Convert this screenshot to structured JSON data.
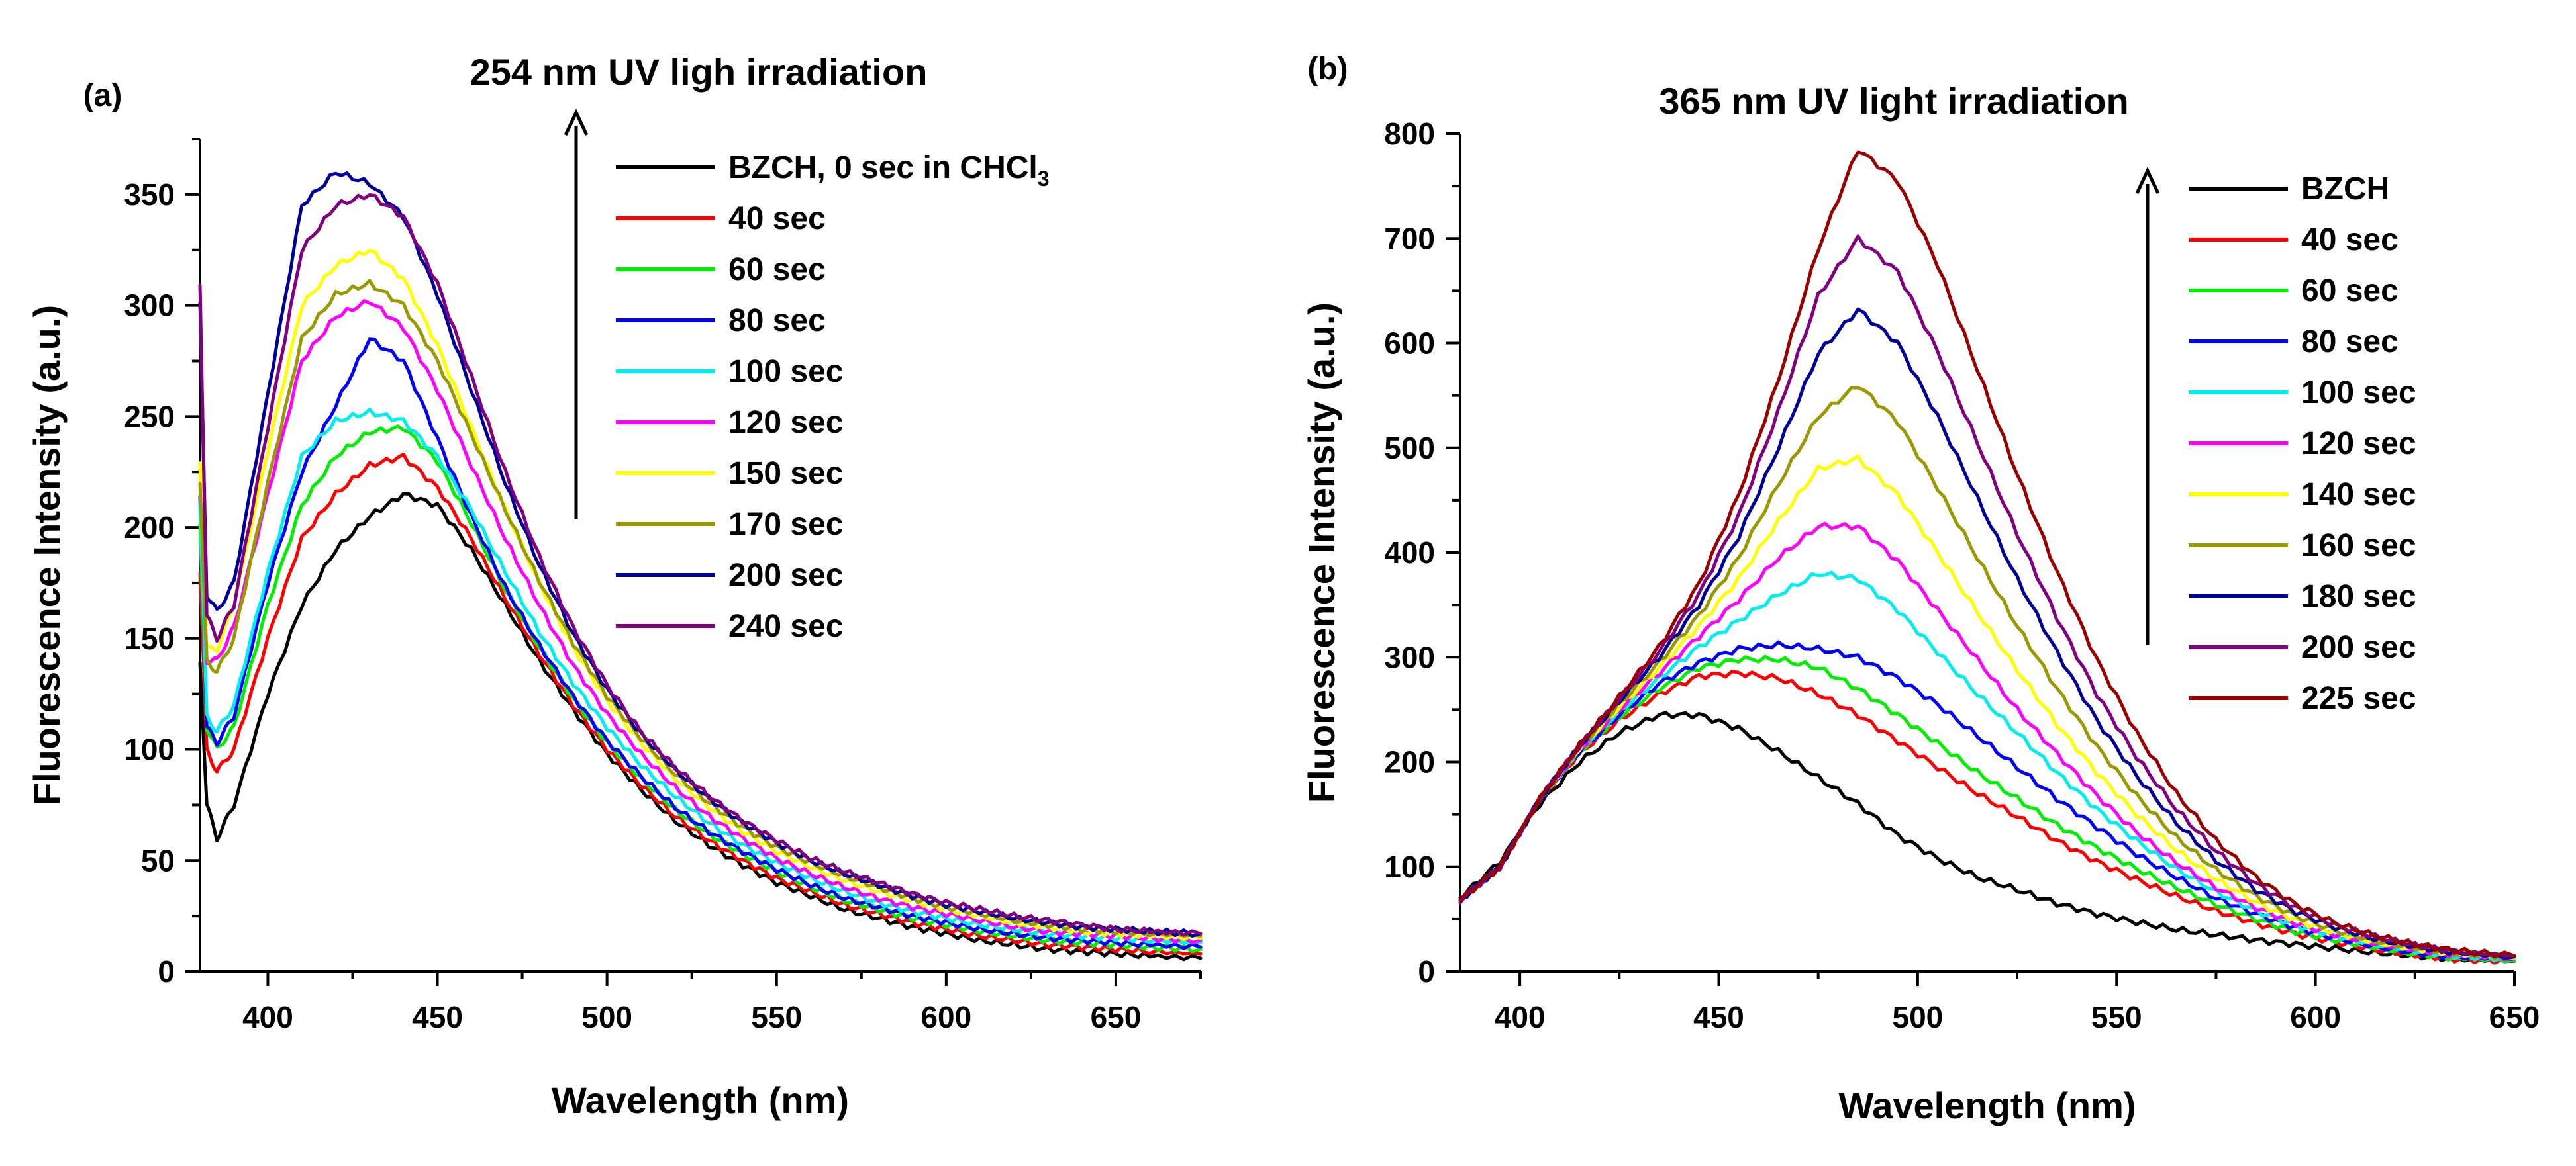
{
  "chart_data": [
    {
      "type": "line",
      "panel_label": "(a)",
      "title": "254 nm UV ligh irradiation",
      "xlabel": "Wavelength (nm)",
      "ylabel": "Fluorescence Intensity (a.u.)",
      "xlim": [
        380,
        675
      ],
      "ylim": [
        0,
        375
      ],
      "xticks": [
        400,
        450,
        500,
        550,
        600,
        650
      ],
      "yticks": [
        0,
        50,
        100,
        150,
        200,
        250,
        300,
        350
      ],
      "legend_position": "top-right",
      "arrow": {
        "direction": "up",
        "meaning": "increasing irradiation time"
      },
      "x": [
        380,
        382,
        385,
        390,
        400,
        410,
        420,
        430,
        440,
        450,
        460,
        470,
        480,
        490,
        500,
        510,
        520,
        530,
        540,
        550,
        560,
        570,
        580,
        590,
        600,
        610,
        620,
        630,
        640,
        650,
        660,
        675
      ],
      "series": [
        {
          "name": "BZCH, 0 sec in CHCl3",
          "label_main": "BZCH, 0 sec in CHCl",
          "label_sub": "3",
          "color": "#000000",
          "values": [
            140,
            75,
            60,
            75,
            125,
            165,
            190,
            205,
            215,
            210,
            190,
            165,
            140,
            118,
            98,
            82,
            68,
            57,
            48,
            40,
            34,
            28,
            24,
            20,
            17,
            14,
            12,
            10,
            9,
            8,
            7,
            6
          ]
        },
        {
          "name": "40 sec",
          "color": "#ff0000",
          "values": [
            180,
            100,
            90,
            100,
            150,
            195,
            215,
            228,
            232,
            218,
            195,
            168,
            143,
            120,
            100,
            84,
            70,
            59,
            50,
            42,
            36,
            30,
            26,
            22,
            19,
            16,
            14,
            12,
            11,
            10,
            9,
            8
          ]
        },
        {
          "name": "60 sec",
          "color": "#00ee00",
          "values": [
            200,
            110,
            100,
            110,
            165,
            210,
            232,
            243,
            245,
            230,
            202,
            172,
            146,
            123,
            103,
            87,
            73,
            62,
            53,
            45,
            38,
            32,
            28,
            24,
            21,
            18,
            16,
            14,
            13,
            12,
            11,
            10
          ]
        },
        {
          "name": "80 sec",
          "color": "#0000ff",
          "values": [
            215,
            110,
            103,
            115,
            175,
            225,
            255,
            285,
            275,
            240,
            205,
            173,
            147,
            124,
            104,
            88,
            74,
            63,
            54,
            46,
            39,
            33,
            29,
            25,
            22,
            19,
            17,
            15,
            14,
            13,
            12,
            11
          ]
        },
        {
          "name": "100 sec",
          "color": "#00eeee",
          "values": [
            210,
            115,
            108,
            120,
            180,
            232,
            248,
            252,
            248,
            232,
            208,
            180,
            153,
            130,
            110,
            93,
            79,
            67,
            57,
            49,
            42,
            36,
            31,
            27,
            24,
            21,
            19,
            17,
            16,
            15,
            14,
            13
          ]
        },
        {
          "name": "120 sec",
          "color": "#ff00ff",
          "values": [
            225,
            140,
            140,
            155,
            215,
            275,
            295,
            302,
            290,
            262,
            228,
            195,
            165,
            138,
            116,
            98,
            83,
            70,
            60,
            51,
            44,
            38,
            33,
            29,
            26,
            23,
            20,
            18,
            17,
            16,
            15,
            14
          ]
        },
        {
          "name": "150 sec",
          "color": "#ffff00",
          "values": [
            230,
            145,
            145,
            165,
            235,
            300,
            318,
            325,
            312,
            282,
            245,
            208,
            175,
            146,
            122,
            103,
            87,
            74,
            63,
            54,
            47,
            41,
            36,
            32,
            28,
            25,
            22,
            20,
            18,
            17,
            16,
            15
          ]
        },
        {
          "name": "170 sec",
          "color": "#999900",
          "values": [
            220,
            140,
            135,
            150,
            220,
            285,
            305,
            310,
            300,
            275,
            242,
            208,
            176,
            148,
            124,
            105,
            89,
            76,
            65,
            56,
            49,
            43,
            38,
            33,
            29,
            26,
            23,
            21,
            19,
            18,
            17,
            16
          ]
        },
        {
          "name": "200 sec",
          "color": "#000099",
          "values": [
            300,
            170,
            162,
            175,
            260,
            345,
            360,
            355,
            340,
            305,
            262,
            220,
            183,
            152,
            127,
            107,
            91,
            78,
            67,
            58,
            50,
            44,
            39,
            34,
            30,
            27,
            24,
            22,
            20,
            19,
            18,
            17
          ]
        },
        {
          "name": "240 sec",
          "color": "#800080",
          "values": [
            310,
            160,
            150,
            165,
            245,
            325,
            345,
            350,
            340,
            310,
            268,
            225,
            187,
            155,
            129,
            108,
            92,
            79,
            68,
            59,
            51,
            45,
            40,
            35,
            31,
            28,
            25,
            23,
            21,
            19,
            18,
            17
          ]
        }
      ]
    },
    {
      "type": "line",
      "panel_label": "(b)",
      "title": "365 nm UV light irradiation",
      "xlabel": "Wavelength (nm)",
      "ylabel": "Fluorescence Intensity (a.u.)",
      "xlim": [
        385,
        650
      ],
      "ylim": [
        0,
        800
      ],
      "xticks": [
        400,
        450,
        500,
        550,
        600,
        650
      ],
      "yticks": [
        0,
        100,
        200,
        300,
        400,
        500,
        600,
        700,
        800
      ],
      "legend_position": "top-right",
      "arrow": {
        "direction": "up",
        "meaning": "increasing irradiation time"
      },
      "x": [
        385,
        395,
        405,
        415,
        425,
        435,
        445,
        455,
        465,
        475,
        485,
        495,
        505,
        515,
        525,
        535,
        545,
        555,
        565,
        575,
        585,
        595,
        605,
        615,
        625,
        635,
        650
      ],
      "series": [
        {
          "name": "BZCH",
          "color": "#000000",
          "values": [
            70,
            105,
            160,
            200,
            228,
            245,
            245,
            232,
            210,
            185,
            160,
            130,
            108,
            90,
            78,
            65,
            55,
            47,
            40,
            35,
            30,
            26,
            22,
            18,
            15,
            12,
            10
          ]
        },
        {
          "name": "40 sec",
          "color": "#ff0000",
          "values": [
            68,
            100,
            165,
            208,
            240,
            265,
            282,
            285,
            280,
            265,
            245,
            220,
            195,
            170,
            148,
            125,
            105,
            88,
            72,
            58,
            46,
            36,
            28,
            21,
            16,
            12,
            10
          ]
        },
        {
          "name": "60 sec",
          "color": "#00ee00",
          "values": [
            68,
            100,
            165,
            210,
            243,
            270,
            290,
            298,
            298,
            290,
            270,
            245,
            218,
            190,
            165,
            140,
            118,
            98,
            80,
            64,
            50,
            38,
            30,
            23,
            17,
            13,
            11
          ]
        },
        {
          "name": "80 sec",
          "color": "#0000ff",
          "values": [
            68,
            100,
            165,
            210,
            245,
            275,
            295,
            308,
            312,
            308,
            300,
            280,
            255,
            225,
            195,
            165,
            138,
            112,
            90,
            70,
            55,
            42,
            32,
            24,
            18,
            14,
            12
          ]
        },
        {
          "name": "100 sec",
          "color": "#00eeee",
          "values": [
            68,
            100,
            165,
            212,
            248,
            280,
            310,
            335,
            360,
            380,
            375,
            345,
            305,
            265,
            228,
            190,
            155,
            125,
            98,
            76,
            58,
            44,
            34,
            26,
            20,
            15,
            12
          ]
        },
        {
          "name": "120 sec",
          "color": "#ff00ff",
          "values": [
            68,
            100,
            165,
            212,
            250,
            285,
            320,
            355,
            395,
            425,
            425,
            392,
            345,
            298,
            250,
            208,
            168,
            133,
            104,
            80,
            61,
            46,
            35,
            27,
            21,
            16,
            13
          ]
        },
        {
          "name": "140 sec",
          "color": "#ffff00",
          "values": [
            68,
            100,
            165,
            213,
            252,
            290,
            330,
            375,
            430,
            480,
            490,
            455,
            400,
            343,
            288,
            236,
            190,
            150,
            116,
            88,
            66,
            49,
            37,
            28,
            22,
            17,
            13
          ]
        },
        {
          "name": "160 sec",
          "color": "#999900",
          "values": [
            68,
            100,
            165,
            214,
            255,
            295,
            340,
            395,
            465,
            530,
            560,
            525,
            462,
            395,
            330,
            270,
            215,
            168,
            128,
            97,
            72,
            53,
            39,
            29,
            23,
            18,
            14
          ]
        },
        {
          "name": "180 sec",
          "color": "#000099",
          "values": [
            68,
            100,
            165,
            215,
            258,
            300,
            350,
            415,
            500,
            590,
            632,
            600,
            530,
            452,
            375,
            305,
            240,
            187,
            142,
            106,
            78,
            57,
            42,
            31,
            24,
            18,
            14
          ]
        },
        {
          "name": "200 sec",
          "color": "#800080",
          "values": [
            68,
            100,
            165,
            215,
            260,
            305,
            360,
            435,
            535,
            645,
            700,
            668,
            592,
            505,
            418,
            338,
            265,
            205,
            155,
            115,
            84,
            61,
            44,
            33,
            25,
            19,
            15
          ]
        },
        {
          "name": "225 sec",
          "color": "#990000",
          "values": [
            68,
            100,
            165,
            216,
            262,
            310,
            370,
            455,
            565,
            690,
            785,
            755,
            675,
            575,
            475,
            382,
            298,
            228,
            170,
            125,
            90,
            64,
            46,
            34,
            26,
            20,
            15
          ]
        }
      ]
    }
  ]
}
